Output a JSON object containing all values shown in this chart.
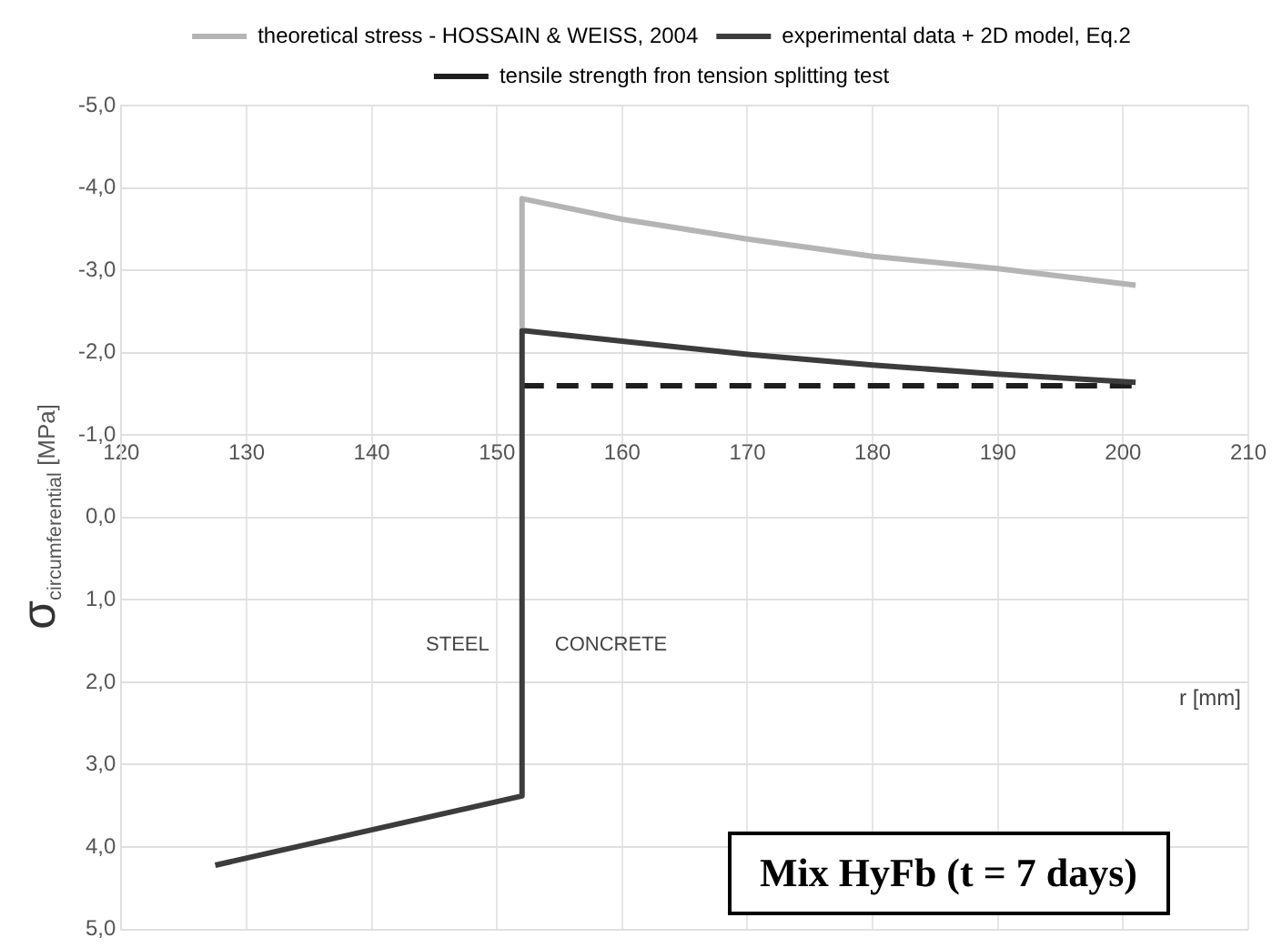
{
  "chart_data": {
    "type": "line",
    "xlabel": "r [mm]",
    "ylabel": "σ$_{circumferential}$ [MPa]",
    "xlim": [
      120,
      210
    ],
    "xticks": [
      120,
      130,
      140,
      150,
      160,
      170,
      180,
      190,
      200,
      210
    ],
    "ylim": [
      5,
      -5
    ],
    "yticks": [
      {
        "value": -5,
        "label": "-5,0"
      },
      {
        "value": -4,
        "label": "-4,0"
      },
      {
        "value": -3,
        "label": "-3,0"
      },
      {
        "value": -2,
        "label": "-2,0"
      },
      {
        "value": -1,
        "label": "-1,0"
      },
      {
        "value": 0,
        "label": "0,0"
      },
      {
        "value": 1,
        "label": "1,0"
      },
      {
        "value": 2,
        "label": "2,0"
      },
      {
        "value": 3,
        "label": "3,0"
      },
      {
        "value": 4,
        "label": "4,0"
      },
      {
        "value": 5,
        "label": "5,0"
      }
    ],
    "series": [
      {
        "name": "theoretical stress - HOSSAIN & WEISS, 2004",
        "color": "#b4b4b4",
        "x": [
          152,
          152,
          160,
          170,
          180,
          190,
          201
        ],
        "values": [
          -2.3,
          -3.87,
          -3.62,
          -3.38,
          -3.17,
          -3.02,
          -2.82
        ]
      },
      {
        "name": "experimental data + 2D model, Eq.2",
        "color": "#3c3c3c",
        "x": [
          127.5,
          152,
          152,
          160,
          170,
          180,
          190,
          201
        ],
        "values": [
          4.22,
          3.38,
          -2.27,
          -2.14,
          -1.98,
          -1.85,
          -1.74,
          -1.64
        ]
      },
      {
        "name": "tensile strength fron tension splitting test",
        "color": "#1e1e1e",
        "line_style": "dashed",
        "x": [
          152,
          201
        ],
        "values": [
          -1.6,
          -1.6
        ]
      }
    ],
    "annotations": [
      "STEEL",
      "CONCRETE",
      "Mix HyFb (t = 7 days)"
    ],
    "grid": true,
    "legend": "top",
    "marker": "none"
  }
}
